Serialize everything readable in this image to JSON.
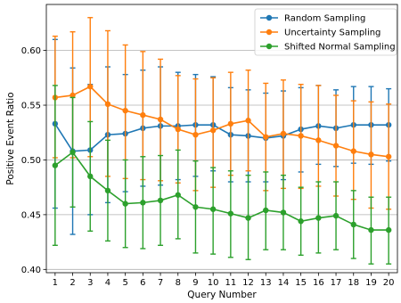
{
  "chart_data": {
    "type": "line",
    "xlabel": "Query Number",
    "ylabel": "Positive Event Ratio",
    "x": [
      1,
      2,
      3,
      4,
      5,
      6,
      7,
      8,
      9,
      10,
      11,
      12,
      13,
      14,
      15,
      16,
      17,
      18,
      19,
      20
    ],
    "x_ticks": [
      "1",
      "2",
      "3",
      "4",
      "5",
      "6",
      "7",
      "8",
      "9",
      "10",
      "11",
      "12",
      "13",
      "14",
      "15",
      "16",
      "17",
      "18",
      "19",
      "20"
    ],
    "ylim": [
      0.397,
      0.642
    ],
    "y_ticks": [
      0.4,
      0.45,
      0.5,
      0.55,
      0.6
    ],
    "y_tick_labels": [
      "0.40",
      "0.45",
      "0.50",
      "0.55",
      "0.60"
    ],
    "grid": "horizontal",
    "legend_position": "top-right",
    "series": [
      {
        "name": "Random Sampling",
        "color": "#1f77b4",
        "values": [
          0.533,
          0.508,
          0.509,
          0.523,
          0.524,
          0.529,
          0.531,
          0.531,
          0.532,
          0.532,
          0.523,
          0.522,
          0.52,
          0.522,
          0.528,
          0.531,
          0.529,
          0.532,
          0.532,
          0.532
        ],
        "err_low": [
          0.456,
          0.432,
          0.45,
          0.461,
          0.471,
          0.476,
          0.477,
          0.482,
          0.485,
          0.49,
          0.48,
          0.48,
          0.48,
          0.482,
          0.489,
          0.496,
          0.494,
          0.497,
          0.496,
          0.499
        ],
        "err_high": [
          0.61,
          0.584,
          0.569,
          0.585,
          0.578,
          0.582,
          0.585,
          0.58,
          0.578,
          0.576,
          0.566,
          0.564,
          0.561,
          0.563,
          0.566,
          0.568,
          0.564,
          0.567,
          0.567,
          0.565
        ]
      },
      {
        "name": "Uncertainty Sampling",
        "color": "#ff7f0e",
        "values": [
          0.557,
          0.559,
          0.567,
          0.551,
          0.545,
          0.541,
          0.537,
          0.528,
          0.523,
          0.527,
          0.533,
          0.536,
          0.521,
          0.524,
          0.522,
          0.518,
          0.513,
          0.508,
          0.505,
          0.503
        ],
        "err_low": [
          0.502,
          0.502,
          0.503,
          0.485,
          0.483,
          0.482,
          0.481,
          0.479,
          0.472,
          0.475,
          0.486,
          0.49,
          0.472,
          0.474,
          0.474,
          0.476,
          0.467,
          0.464,
          0.456,
          0.455
        ],
        "err_high": [
          0.613,
          0.617,
          0.63,
          0.618,
          0.605,
          0.599,
          0.592,
          0.577,
          0.574,
          0.575,
          0.58,
          0.582,
          0.57,
          0.573,
          0.569,
          0.568,
          0.559,
          0.554,
          0.553,
          0.551
        ]
      },
      {
        "name": "Shifted Normal Sampling",
        "color": "#2ca02c",
        "values": [
          0.495,
          0.507,
          0.485,
          0.472,
          0.46,
          0.461,
          0.463,
          0.468,
          0.457,
          0.455,
          0.451,
          0.447,
          0.454,
          0.452,
          0.444,
          0.447,
          0.449,
          0.441,
          0.436,
          0.436
        ],
        "err_low": [
          0.422,
          0.457,
          0.435,
          0.426,
          0.42,
          0.419,
          0.422,
          0.428,
          0.415,
          0.414,
          0.411,
          0.409,
          0.418,
          0.418,
          0.413,
          0.415,
          0.418,
          0.41,
          0.405,
          0.405
        ],
        "err_high": [
          0.568,
          0.557,
          0.535,
          0.518,
          0.5,
          0.503,
          0.504,
          0.509,
          0.499,
          0.493,
          0.49,
          0.486,
          0.489,
          0.486,
          0.475,
          0.48,
          0.48,
          0.472,
          0.466,
          0.466
        ]
      }
    ]
  }
}
